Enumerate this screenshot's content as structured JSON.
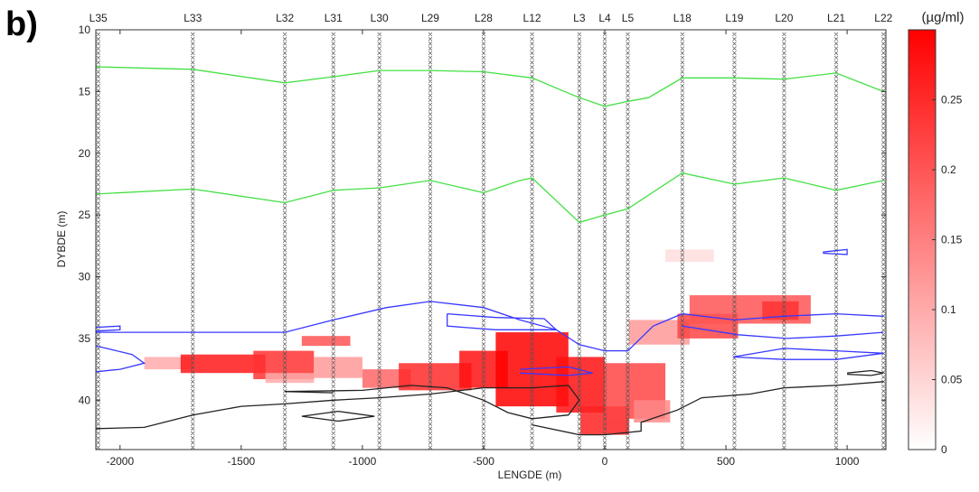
{
  "panel_label": "b)",
  "chart_data": {
    "type": "heatmap",
    "title": "",
    "xlabel": "LENGDE (m)",
    "ylabel": "DYBDE (m)",
    "xlim": [
      -2100,
      1160
    ],
    "ylim": [
      10,
      44
    ],
    "y_inverted": true,
    "xticks": [
      -2000,
      -1500,
      -1000,
      -500,
      0,
      500,
      1000
    ],
    "yticks": [
      10,
      15,
      20,
      25,
      30,
      35,
      40
    ],
    "colorbar": {
      "label": "(µg/ml)",
      "range": [
        0,
        0.3
      ],
      "ticks": [
        0,
        0.05,
        0.1,
        0.15,
        0.2,
        0.25
      ],
      "color_low": "#ffffff",
      "color_high": "#ff0000"
    },
    "wells": [
      {
        "name": "L35",
        "x": -2090
      },
      {
        "name": "L33",
        "x": -1700
      },
      {
        "name": "L32",
        "x": -1320
      },
      {
        "name": "L31",
        "x": -1120
      },
      {
        "name": "L30",
        "x": -930
      },
      {
        "name": "L29",
        "x": -720
      },
      {
        "name": "L28",
        "x": -500
      },
      {
        "name": "L12",
        "x": -300
      },
      {
        "name": "L3",
        "x": -105
      },
      {
        "name": "L4",
        "x": 0
      },
      {
        "name": "L5",
        "x": 95
      },
      {
        "name": "L18",
        "x": 320
      },
      {
        "name": "L19",
        "x": 535
      },
      {
        "name": "L20",
        "x": 740
      },
      {
        "name": "L21",
        "x": 955
      },
      {
        "name": "L22",
        "x": 1150
      }
    ],
    "concentration_cells": [
      {
        "x0": -1900,
        "x1": -1700,
        "y0": 36.5,
        "y1": 37.5,
        "v": 0.1
      },
      {
        "x0": -1750,
        "x1": -1400,
        "y0": 36.3,
        "y1": 37.8,
        "v": 0.27
      },
      {
        "x0": -1450,
        "x1": -1200,
        "y0": 36.0,
        "y1": 38.3,
        "v": 0.24
      },
      {
        "x0": -1400,
        "x1": -1200,
        "y0": 37.8,
        "y1": 38.6,
        "v": 0.1
      },
      {
        "x0": -1250,
        "x1": -1050,
        "y0": 34.8,
        "y1": 35.6,
        "v": 0.2
      },
      {
        "x0": -1200,
        "x1": -1000,
        "y0": 36.5,
        "y1": 38.2,
        "v": 0.12
      },
      {
        "x0": -1000,
        "x1": -800,
        "y0": 37.5,
        "y1": 39.0,
        "v": 0.18
      },
      {
        "x0": -850,
        "x1": -550,
        "y0": 37.0,
        "y1": 39.2,
        "v": 0.25
      },
      {
        "x0": -600,
        "x1": -400,
        "y0": 36.0,
        "y1": 39.0,
        "v": 0.28
      },
      {
        "x0": -450,
        "x1": -150,
        "y0": 34.5,
        "y1": 40.5,
        "v": 0.3
      },
      {
        "x0": -200,
        "x1": 0,
        "y0": 36.5,
        "y1": 41.0,
        "v": 0.28
      },
      {
        "x0": -100,
        "x1": 100,
        "y0": 40.5,
        "y1": 42.8,
        "v": 0.26
      },
      {
        "x0": 0,
        "x1": 250,
        "y0": 37.0,
        "y1": 41.5,
        "v": 0.22
      },
      {
        "x0": 120,
        "x1": 270,
        "y0": 40.0,
        "y1": 41.8,
        "v": 0.14
      },
      {
        "x0": 100,
        "x1": 350,
        "y0": 33.5,
        "y1": 35.5,
        "v": 0.12
      },
      {
        "x0": 300,
        "x1": 550,
        "y0": 33.0,
        "y1": 35.0,
        "v": 0.22
      },
      {
        "x0": 350,
        "x1": 850,
        "y0": 31.5,
        "y1": 33.8,
        "v": 0.2
      },
      {
        "x0": 650,
        "x1": 800,
        "y0": 32.0,
        "y1": 33.5,
        "v": 0.24
      },
      {
        "x0": 250,
        "x1": 450,
        "y0": 27.8,
        "y1": 28.8,
        "v": 0.04
      }
    ],
    "contours": [
      {
        "color": "#44e044",
        "points": [
          [
            -2100,
            13.0
          ],
          [
            -1700,
            13.2
          ],
          [
            -1320,
            14.3
          ],
          [
            -1120,
            13.8
          ],
          [
            -930,
            13.3
          ],
          [
            -720,
            13.3
          ],
          [
            -500,
            13.4
          ],
          [
            -300,
            13.9
          ],
          [
            -105,
            15.5
          ],
          [
            0,
            16.2
          ],
          [
            95,
            15.8
          ],
          [
            180,
            15.5
          ],
          [
            320,
            13.9
          ],
          [
            535,
            13.9
          ],
          [
            740,
            14.0
          ],
          [
            955,
            13.5
          ],
          [
            1150,
            15.0
          ]
        ]
      },
      {
        "color": "#44e044",
        "points": [
          [
            -2100,
            23.3
          ],
          [
            -1700,
            22.9
          ],
          [
            -1320,
            24.0
          ],
          [
            -1120,
            23.0
          ],
          [
            -930,
            22.8
          ],
          [
            -720,
            22.2
          ],
          [
            -500,
            23.2
          ],
          [
            -350,
            22.2
          ],
          [
            -300,
            22.0
          ],
          [
            -105,
            25.6
          ],
          [
            0,
            25.0
          ],
          [
            95,
            24.5
          ],
          [
            320,
            21.6
          ],
          [
            535,
            22.5
          ],
          [
            740,
            22.0
          ],
          [
            955,
            23.0
          ],
          [
            1150,
            22.2
          ]
        ]
      },
      {
        "color": "#3838ff",
        "points": [
          [
            -2100,
            34.5
          ],
          [
            -1320,
            34.5
          ],
          [
            -1120,
            33.5
          ],
          [
            -900,
            32.5
          ],
          [
            -720,
            32.0
          ],
          [
            -500,
            32.5
          ],
          [
            -350,
            33.5
          ],
          [
            -200,
            34.3
          ],
          [
            -105,
            35.5
          ],
          [
            0,
            36.0
          ],
          [
            95,
            36.0
          ],
          [
            200,
            34.0
          ],
          [
            320,
            33.0
          ],
          [
            535,
            33.5
          ],
          [
            740,
            33.2
          ],
          [
            955,
            33.0
          ],
          [
            1150,
            33.2
          ]
        ]
      },
      {
        "color": "#3838ff",
        "points": [
          [
            -2100,
            35.6
          ],
          [
            -1950,
            36.3
          ],
          [
            -1900,
            37.0
          ],
          [
            -2000,
            37.5
          ],
          [
            -2100,
            37.7
          ]
        ]
      },
      {
        "color": "#3838ff",
        "points": [
          [
            -650,
            33.0
          ],
          [
            -450,
            33.3
          ],
          [
            -250,
            33.4
          ],
          [
            -200,
            34.3
          ],
          [
            -450,
            34.3
          ],
          [
            -650,
            34.0
          ],
          [
            -650,
            33.0
          ]
        ]
      },
      {
        "color": "#3838ff",
        "points": [
          [
            -350,
            37.5
          ],
          [
            -150,
            37.3
          ],
          [
            -50,
            37.8
          ],
          [
            -150,
            38.0
          ],
          [
            -350,
            37.8
          ]
        ]
      },
      {
        "color": "#3838ff",
        "points": [
          [
            320,
            34.0
          ],
          [
            550,
            34.7
          ],
          [
            750,
            35.0
          ],
          [
            955,
            34.8
          ],
          [
            1150,
            34.5
          ]
        ]
      },
      {
        "color": "#3838ff",
        "points": [
          [
            530,
            36.5
          ],
          [
            740,
            35.8
          ],
          [
            955,
            36.0
          ],
          [
            1150,
            36.2
          ],
          [
            955,
            36.7
          ],
          [
            740,
            36.7
          ],
          [
            530,
            36.5
          ]
        ]
      },
      {
        "color": "#3838ff",
        "points": [
          [
            -2100,
            34.1
          ],
          [
            -2000,
            34.0
          ],
          [
            -2000,
            34.3
          ],
          [
            -2100,
            34.4
          ]
        ]
      },
      {
        "color": "#3838ff",
        "points": [
          [
            900,
            28.0
          ],
          [
            1000,
            27.8
          ],
          [
            1000,
            28.2
          ],
          [
            900,
            28.1
          ]
        ]
      },
      {
        "color": "#222222",
        "points": [
          [
            -2100,
            42.3
          ],
          [
            -1900,
            42.2
          ],
          [
            -1700,
            41.2
          ],
          [
            -1500,
            40.5
          ],
          [
            -1320,
            40.3
          ],
          [
            -1120,
            40.0
          ],
          [
            -930,
            39.8
          ],
          [
            -720,
            39.5
          ],
          [
            -500,
            39.0
          ],
          [
            -300,
            39.0
          ],
          [
            -150,
            38.8
          ],
          [
            -105,
            40.0
          ],
          [
            -150,
            41.2
          ],
          [
            -300,
            41.5
          ],
          [
            -400,
            41.0
          ],
          [
            -500,
            40.0
          ],
          [
            -650,
            39.0
          ],
          [
            -800,
            38.8
          ],
          [
            -1000,
            39.2
          ],
          [
            -1320,
            39.3
          ],
          [
            -1120,
            39.4
          ]
        ]
      },
      {
        "color": "#222222",
        "points": [
          [
            -1250,
            41.3
          ],
          [
            -1100,
            40.9
          ],
          [
            -950,
            41.3
          ],
          [
            -1100,
            41.7
          ],
          [
            -1250,
            41.3
          ]
        ]
      },
      {
        "color": "#222222",
        "points": [
          [
            -300,
            42.0
          ],
          [
            -105,
            42.8
          ],
          [
            0,
            42.8
          ],
          [
            150,
            42.5
          ],
          [
            150,
            41.8
          ],
          [
            300,
            40.8
          ],
          [
            400,
            39.8
          ],
          [
            600,
            39.5
          ],
          [
            740,
            39.0
          ],
          [
            955,
            38.8
          ],
          [
            1150,
            38.5
          ]
        ]
      },
      {
        "color": "#222222",
        "points": [
          [
            1000,
            37.8
          ],
          [
            1100,
            37.6
          ],
          [
            1150,
            37.8
          ],
          [
            1100,
            38.0
          ],
          [
            1000,
            37.9
          ]
        ]
      }
    ]
  }
}
